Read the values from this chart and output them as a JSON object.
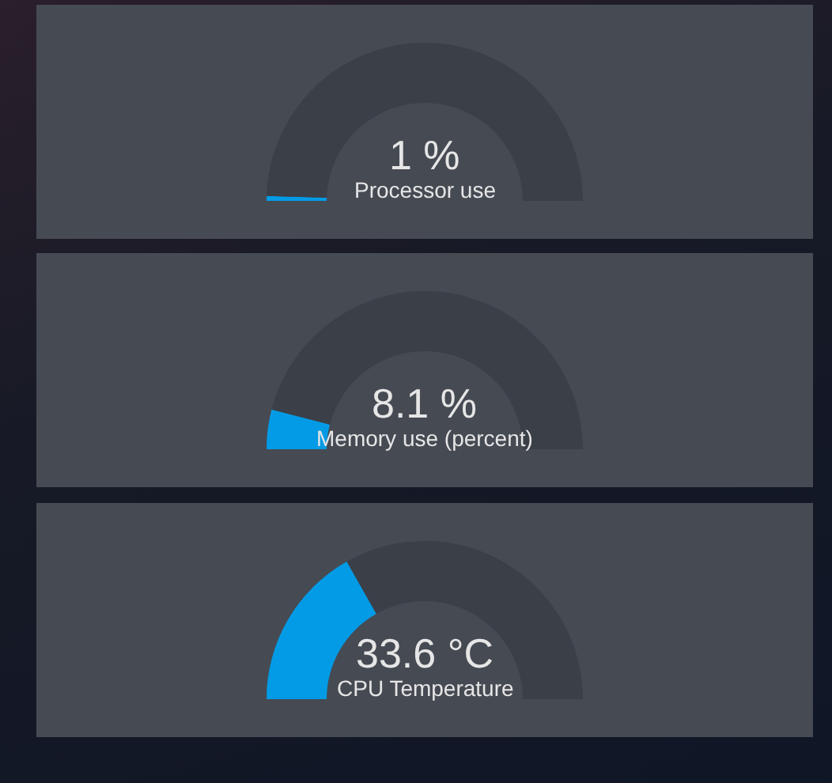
{
  "chart_data": [
    {
      "type": "donut",
      "title": "Processor use",
      "categories": [
        null,
        null
      ],
      "values": [
        1,
        99
      ],
      "colors": [
        "#039be5",
        "#3b3f48"
      ],
      "annotations": [
        "1 %"
      ]
    },
    {
      "type": "donut",
      "title": "Memory use (percent)",
      "categories": [
        null,
        null
      ],
      "values": [
        8.1,
        91.9
      ],
      "colors": [
        "#039be5",
        "#3b3f48"
      ],
      "annotations": [
        "8.1 %"
      ]
    },
    {
      "type": "donut",
      "title": "CPU Temperature",
      "categories": [
        null,
        null
      ],
      "values": [
        33.6,
        66.4
      ],
      "colors": [
        "#039be5",
        "#3b3f48"
      ],
      "annotations": [
        "33.6 °C"
      ]
    }
  ]
}
